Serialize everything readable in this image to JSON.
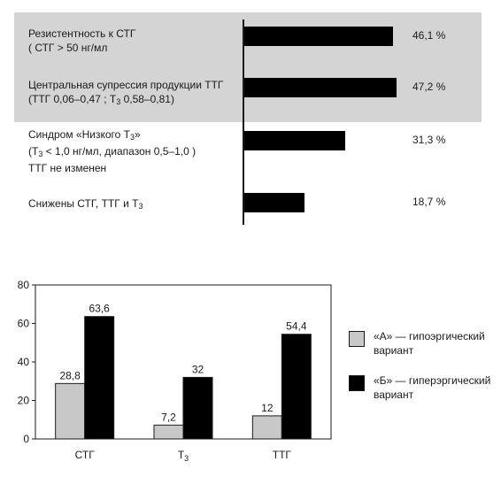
{
  "chart_data": [
    {
      "type": "bar",
      "orientation": "horizontal",
      "rows": [
        {
          "label_lines": [
            "Резистентность к СТГ",
            "( СТГ > 50  нг/мл"
          ],
          "value": 46.1,
          "value_label": "46,1 %",
          "highlighted": true
        },
        {
          "label_lines": [
            "Центральная супрессия продукции ТТГ",
            "(ТТГ 0,06–0,47 ; Т|3|  0,58–0,81)"
          ],
          "value": 47.2,
          "value_label": "47,2 %",
          "highlighted": true
        },
        {
          "label_lines": [
            "Синдром  «Низкого Т|3|»",
            "(Т|3|  < 1,0 нг/мл, диапазон 0,5–1,0 )",
            "ТТГ не изменен"
          ],
          "value": 31.3,
          "value_label": "31,3 %",
          "highlighted": false
        },
        {
          "label_lines": [
            "Снижены СТГ, ТТГ и Т|3|"
          ],
          "value": 18.7,
          "value_label": "18,7 %",
          "highlighted": false
        }
      ],
      "highlight_color": "#d4d4d4",
      "bar_color": "#000000"
    },
    {
      "type": "bar",
      "categories": [
        "СТГ",
        "Т|3|",
        "ТТГ"
      ],
      "series": [
        {
          "name": "«А» — гипоэргический вариант",
          "values": [
            28.8,
            7.2,
            12
          ],
          "labels": [
            "28,8",
            "7,2",
            "12"
          ],
          "color": "#c8c8c8"
        },
        {
          "name": "«Б» — гиперэргический вариант",
          "values": [
            63.6,
            32,
            54.4
          ],
          "labels": [
            "63,6",
            "32",
            "54,4"
          ],
          "color": "#000000"
        }
      ],
      "ylim": [
        0,
        80
      ],
      "yticks": [
        0,
        20,
        40,
        60,
        80
      ],
      "grid": false,
      "legend": "right"
    }
  ]
}
